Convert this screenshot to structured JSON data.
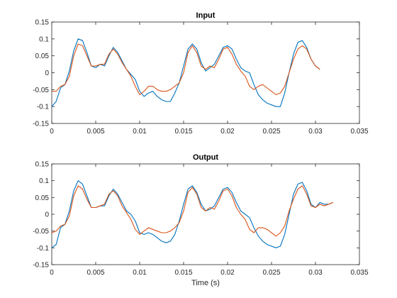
{
  "chart_data": [
    {
      "type": "line",
      "title": "Input",
      "xlabel": "",
      "ylabel": "",
      "xlim": [
        0,
        0.035
      ],
      "ylim": [
        -0.15,
        0.15
      ],
      "xticks": [
        "0",
        "0.005",
        "0.01",
        "0.015",
        "0.02",
        "0.025",
        "0.03",
        "0.035"
      ],
      "yticks": [
        "-0.15",
        "-0.1",
        "-0.05",
        "0",
        "0.05",
        "0.1",
        "0.15"
      ],
      "series": [
        {
          "color": "#0072BD",
          "points": [
            [
              0.0,
              -0.1
            ],
            [
              0.0005,
              -0.085
            ],
            [
              0.001,
              -0.045
            ],
            [
              0.0015,
              -0.035
            ],
            [
              0.002,
              0.005
            ],
            [
              0.0025,
              0.065
            ],
            [
              0.003,
              0.1
            ],
            [
              0.0035,
              0.095
            ],
            [
              0.004,
              0.06
            ],
            [
              0.0045,
              0.02
            ],
            [
              0.005,
              0.015
            ],
            [
              0.0055,
              0.025
            ],
            [
              0.006,
              0.02
            ],
            [
              0.0065,
              0.05
            ],
            [
              0.007,
              0.075
            ],
            [
              0.0075,
              0.06
            ],
            [
              0.008,
              0.035
            ],
            [
              0.0085,
              0.01
            ],
            [
              0.009,
              -0.005
            ],
            [
              0.0095,
              -0.02
            ],
            [
              0.01,
              -0.055
            ],
            [
              0.0105,
              -0.07
            ],
            [
              0.011,
              -0.06
            ],
            [
              0.0115,
              -0.055
            ],
            [
              0.012,
              -0.07
            ],
            [
              0.0125,
              -0.08
            ],
            [
              0.013,
              -0.085
            ],
            [
              0.0135,
              -0.085
            ],
            [
              0.014,
              -0.06
            ],
            [
              0.0145,
              -0.03
            ],
            [
              0.015,
              0.02
            ],
            [
              0.0155,
              0.07
            ],
            [
              0.016,
              0.085
            ],
            [
              0.0165,
              0.07
            ],
            [
              0.017,
              0.03
            ],
            [
              0.0175,
              0.005
            ],
            [
              0.018,
              0.015
            ],
            [
              0.0185,
              0.025
            ],
            [
              0.019,
              0.05
            ],
            [
              0.0195,
              0.075
            ],
            [
              0.02,
              0.08
            ],
            [
              0.0205,
              0.07
            ],
            [
              0.021,
              0.04
            ],
            [
              0.0215,
              0.015
            ],
            [
              0.022,
              0.005
            ],
            [
              0.0225,
              0.0
            ],
            [
              0.023,
              -0.035
            ],
            [
              0.0235,
              -0.065
            ],
            [
              0.024,
              -0.08
            ],
            [
              0.0245,
              -0.09
            ],
            [
              0.025,
              -0.095
            ],
            [
              0.0255,
              -0.1
            ],
            [
              0.026,
              -0.1
            ],
            [
              0.0265,
              -0.06
            ],
            [
              0.027,
              0.0
            ],
            [
              0.0275,
              0.055
            ],
            [
              0.028,
              0.09
            ],
            [
              0.0285,
              0.095
            ],
            [
              0.029,
              0.075
            ],
            [
              0.0295,
              0.04
            ],
            [
              0.03,
              0.02
            ],
            [
              0.0305,
              0.01
            ]
          ]
        },
        {
          "color": "#D95319",
          "points": [
            [
              0.0,
              -0.055
            ],
            [
              0.0005,
              -0.055
            ],
            [
              0.001,
              -0.04
            ],
            [
              0.0015,
              -0.035
            ],
            [
              0.002,
              -0.01
            ],
            [
              0.0025,
              0.05
            ],
            [
              0.003,
              0.085
            ],
            [
              0.0035,
              0.08
            ],
            [
              0.004,
              0.05
            ],
            [
              0.0045,
              0.02
            ],
            [
              0.005,
              0.02
            ],
            [
              0.0055,
              0.025
            ],
            [
              0.006,
              0.025
            ],
            [
              0.0065,
              0.055
            ],
            [
              0.007,
              0.07
            ],
            [
              0.0075,
              0.055
            ],
            [
              0.008,
              0.03
            ],
            [
              0.0085,
              0.01
            ],
            [
              0.009,
              -0.01
            ],
            [
              0.0095,
              -0.04
            ],
            [
              0.01,
              -0.065
            ],
            [
              0.0105,
              -0.055
            ],
            [
              0.011,
              -0.04
            ],
            [
              0.0115,
              -0.04
            ],
            [
              0.012,
              -0.05
            ],
            [
              0.0125,
              -0.055
            ],
            [
              0.013,
              -0.055
            ],
            [
              0.0135,
              -0.05
            ],
            [
              0.014,
              -0.04
            ],
            [
              0.0145,
              -0.03
            ],
            [
              0.015,
              0.0
            ],
            [
              0.0155,
              0.06
            ],
            [
              0.016,
              0.08
            ],
            [
              0.0165,
              0.06
            ],
            [
              0.017,
              0.02
            ],
            [
              0.0175,
              0.01
            ],
            [
              0.018,
              0.02
            ],
            [
              0.0185,
              0.015
            ],
            [
              0.019,
              0.04
            ],
            [
              0.0195,
              0.07
            ],
            [
              0.02,
              0.075
            ],
            [
              0.0205,
              0.055
            ],
            [
              0.021,
              0.025
            ],
            [
              0.0215,
              0.005
            ],
            [
              0.022,
              -0.01
            ],
            [
              0.0225,
              -0.04
            ],
            [
              0.023,
              -0.05
            ],
            [
              0.0235,
              -0.04
            ],
            [
              0.024,
              -0.035
            ],
            [
              0.0245,
              -0.045
            ],
            [
              0.025,
              -0.055
            ],
            [
              0.0255,
              -0.065
            ],
            [
              0.026,
              -0.06
            ],
            [
              0.0265,
              -0.04
            ],
            [
              0.027,
              0.0
            ],
            [
              0.0275,
              0.04
            ],
            [
              0.028,
              0.07
            ],
            [
              0.0285,
              0.08
            ],
            [
              0.029,
              0.07
            ],
            [
              0.0295,
              0.04
            ],
            [
              0.03,
              0.02
            ],
            [
              0.0305,
              0.01
            ]
          ]
        }
      ]
    },
    {
      "type": "line",
      "title": "Output",
      "xlabel": "Time (s)",
      "ylabel": "",
      "xlim": [
        0,
        0.035
      ],
      "ylim": [
        -0.15,
        0.15
      ],
      "xticks": [
        "0",
        "0.005",
        "0.01",
        "0.015",
        "0.02",
        "0.025",
        "0.03",
        "0.035"
      ],
      "yticks": [
        "-0.15",
        "-0.1",
        "-0.05",
        "0",
        "0.05",
        "0.1",
        "0.15"
      ],
      "series": [
        {
          "color": "#0072BD",
          "points": [
            [
              0.0,
              -0.1
            ],
            [
              0.0005,
              -0.09
            ],
            [
              0.001,
              -0.04
            ],
            [
              0.0015,
              -0.03
            ],
            [
              0.002,
              0.01
            ],
            [
              0.0025,
              0.07
            ],
            [
              0.003,
              0.1
            ],
            [
              0.0035,
              0.09
            ],
            [
              0.004,
              0.055
            ],
            [
              0.0045,
              0.02
            ],
            [
              0.005,
              0.02
            ],
            [
              0.0055,
              0.025
            ],
            [
              0.006,
              0.025
            ],
            [
              0.0065,
              0.055
            ],
            [
              0.007,
              0.075
            ],
            [
              0.0075,
              0.06
            ],
            [
              0.008,
              0.035
            ],
            [
              0.0085,
              0.01
            ],
            [
              0.009,
              0.0
            ],
            [
              0.0095,
              -0.02
            ],
            [
              0.01,
              -0.055
            ],
            [
              0.0105,
              -0.06
            ],
            [
              0.011,
              -0.055
            ],
            [
              0.0115,
              -0.06
            ],
            [
              0.012,
              -0.07
            ],
            [
              0.0125,
              -0.08
            ],
            [
              0.013,
              -0.085
            ],
            [
              0.0135,
              -0.08
            ],
            [
              0.014,
              -0.06
            ],
            [
              0.0145,
              -0.02
            ],
            [
              0.015,
              0.03
            ],
            [
              0.0155,
              0.075
            ],
            [
              0.016,
              0.085
            ],
            [
              0.0165,
              0.065
            ],
            [
              0.017,
              0.03
            ],
            [
              0.0175,
              0.01
            ],
            [
              0.018,
              0.015
            ],
            [
              0.0185,
              0.025
            ],
            [
              0.019,
              0.05
            ],
            [
              0.0195,
              0.075
            ],
            [
              0.02,
              0.08
            ],
            [
              0.0205,
              0.065
            ],
            [
              0.021,
              0.035
            ],
            [
              0.0215,
              0.01
            ],
            [
              0.022,
              0.0
            ],
            [
              0.0225,
              -0.01
            ],
            [
              0.023,
              -0.04
            ],
            [
              0.0235,
              -0.065
            ],
            [
              0.024,
              -0.08
            ],
            [
              0.0245,
              -0.09
            ],
            [
              0.025,
              -0.095
            ],
            [
              0.0255,
              -0.1
            ],
            [
              0.026,
              -0.095
            ],
            [
              0.0265,
              -0.06
            ],
            [
              0.027,
              0.0
            ],
            [
              0.0275,
              0.06
            ],
            [
              0.028,
              0.09
            ],
            [
              0.0285,
              0.095
            ],
            [
              0.029,
              0.07
            ],
            [
              0.0295,
              0.03
            ],
            [
              0.03,
              0.02
            ],
            [
              0.0305,
              0.035
            ],
            [
              0.031,
              0.03
            ],
            [
              0.0315,
              0.03
            ],
            [
              0.032,
              0.035
            ]
          ]
        },
        {
          "color": "#D95319",
          "points": [
            [
              0.0,
              -0.055
            ],
            [
              0.0005,
              -0.05
            ],
            [
              0.001,
              -0.035
            ],
            [
              0.0015,
              -0.03
            ],
            [
              0.002,
              -0.005
            ],
            [
              0.0025,
              0.055
            ],
            [
              0.003,
              0.085
            ],
            [
              0.0035,
              0.075
            ],
            [
              0.004,
              0.045
            ],
            [
              0.0045,
              0.02
            ],
            [
              0.005,
              0.02
            ],
            [
              0.0055,
              0.025
            ],
            [
              0.006,
              0.03
            ],
            [
              0.0065,
              0.06
            ],
            [
              0.007,
              0.07
            ],
            [
              0.0075,
              0.055
            ],
            [
              0.008,
              0.025
            ],
            [
              0.0085,
              0.005
            ],
            [
              0.009,
              -0.015
            ],
            [
              0.0095,
              -0.045
            ],
            [
              0.01,
              -0.06
            ],
            [
              0.0105,
              -0.05
            ],
            [
              0.011,
              -0.04
            ],
            [
              0.0115,
              -0.045
            ],
            [
              0.012,
              -0.05
            ],
            [
              0.0125,
              -0.055
            ],
            [
              0.013,
              -0.055
            ],
            [
              0.0135,
              -0.05
            ],
            [
              0.014,
              -0.04
            ],
            [
              0.0145,
              -0.025
            ],
            [
              0.015,
              0.01
            ],
            [
              0.0155,
              0.065
            ],
            [
              0.016,
              0.08
            ],
            [
              0.0165,
              0.06
            ],
            [
              0.017,
              0.02
            ],
            [
              0.0175,
              0.01
            ],
            [
              0.018,
              0.02
            ],
            [
              0.0185,
              0.015
            ],
            [
              0.019,
              0.04
            ],
            [
              0.0195,
              0.07
            ],
            [
              0.02,
              0.075
            ],
            [
              0.0205,
              0.055
            ],
            [
              0.021,
              0.02
            ],
            [
              0.0215,
              0.0
            ],
            [
              0.022,
              -0.015
            ],
            [
              0.0225,
              -0.045
            ],
            [
              0.023,
              -0.055
            ],
            [
              0.0235,
              -0.04
            ],
            [
              0.024,
              -0.04
            ],
            [
              0.0245,
              -0.045
            ],
            [
              0.025,
              -0.055
            ],
            [
              0.0255,
              -0.065
            ],
            [
              0.026,
              -0.055
            ],
            [
              0.0265,
              -0.035
            ],
            [
              0.027,
              0.01
            ],
            [
              0.0275,
              0.045
            ],
            [
              0.028,
              0.075
            ],
            [
              0.0285,
              0.085
            ],
            [
              0.029,
              0.06
            ],
            [
              0.0295,
              0.025
            ],
            [
              0.03,
              0.02
            ],
            [
              0.0305,
              0.03
            ],
            [
              0.031,
              0.025
            ],
            [
              0.0315,
              0.03
            ],
            [
              0.032,
              0.035
            ]
          ]
        }
      ]
    }
  ]
}
